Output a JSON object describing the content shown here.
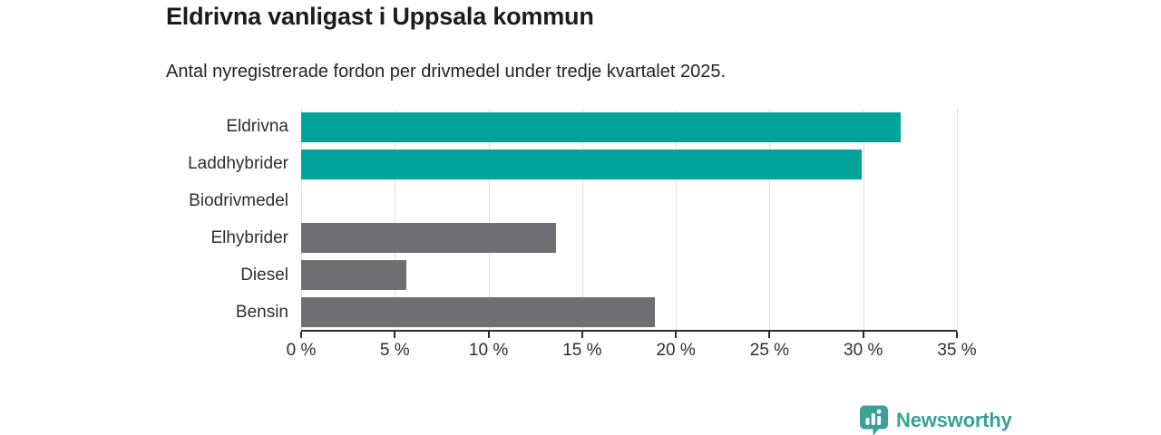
{
  "title": "Eldrivna vanligast i Uppsala kommun",
  "subtitle": "Antal nyregistrerade fordon per drivmedel under tredje kvartalet 2025.",
  "chart_data": {
    "type": "bar",
    "orientation": "horizontal",
    "title": "Eldrivna vanligast i Uppsala kommun",
    "subtitle": "Antal nyregistrerade fordon per drivmedel under tredje kvartalet 2025.",
    "categories": [
      "Eldrivna",
      "Laddhybrider",
      "Biodrivmedel",
      "Elhybrider",
      "Diesel",
      "Bensin"
    ],
    "values": [
      32.0,
      29.9,
      0.0,
      13.6,
      5.6,
      18.9
    ],
    "unit": "%",
    "xlim": [
      0,
      35
    ],
    "x_tick_values": [
      0,
      5,
      10,
      15,
      20,
      25,
      30,
      35
    ],
    "x_tick_labels": [
      "0 %",
      "5 %",
      "10 %",
      "15 %",
      "20 %",
      "25 %",
      "30 %",
      "35 %"
    ],
    "grid": true,
    "legend": false,
    "bar_colors": [
      "#00a39a",
      "#00a39a",
      "#6e6e73",
      "#6e6e73",
      "#6e6e73",
      "#6e6e73"
    ],
    "highlight_color": "#00a39a",
    "default_color": "#6e6e73"
  },
  "colors": {
    "grid": "#e0e0e0",
    "axis": "#2c2c2c",
    "title_text": "#1b1b1b",
    "label_text": "#2e2e2e",
    "logo": "#3aa198"
  },
  "branding": {
    "logo_text": "Newsworthy"
  }
}
